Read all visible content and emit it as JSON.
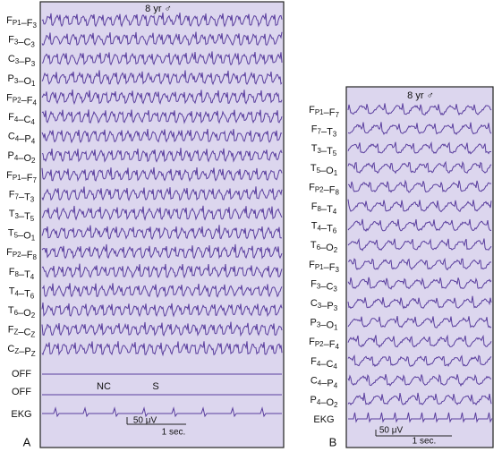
{
  "panel_a": {
    "letter": "A",
    "title": "8 yr ♂",
    "channels": [
      "FP1–F3",
      "F3–C3",
      "C3–P3",
      "P3–O1",
      "FP2–F4",
      "F4–C4",
      "C4–P4",
      "P4–O2",
      "FP1–F7",
      "F7–T3",
      "T3–T5",
      "T5–O1",
      "FP2–F8",
      "F8–T4",
      "T4–T6",
      "T6–O2",
      "FZ–CZ",
      "CZ–PZ"
    ],
    "off_labels": [
      "OFF",
      "OFF"
    ],
    "ekg": "EKG",
    "markers": [
      "NC",
      "S"
    ],
    "calibration": {
      "amplitude": "50 μV",
      "time": "1 sec."
    }
  },
  "panel_b": {
    "letter": "B",
    "title": "8 yr ♂",
    "channels": [
      "FP1–F7",
      "F7–T3",
      "T3–T5",
      "T5–O1",
      "FP2–F8",
      "F8–T4",
      "T4–T6",
      "T6–O2",
      "FP1–F3",
      "F3–C3",
      "C3–P3",
      "P3–O1",
      "FP2–F4",
      "F4–C4",
      "C4–P4",
      "P4–O2"
    ],
    "ekg": "EKG",
    "calibration": {
      "amplitude": "50 μV",
      "time": "1 sec."
    }
  }
}
